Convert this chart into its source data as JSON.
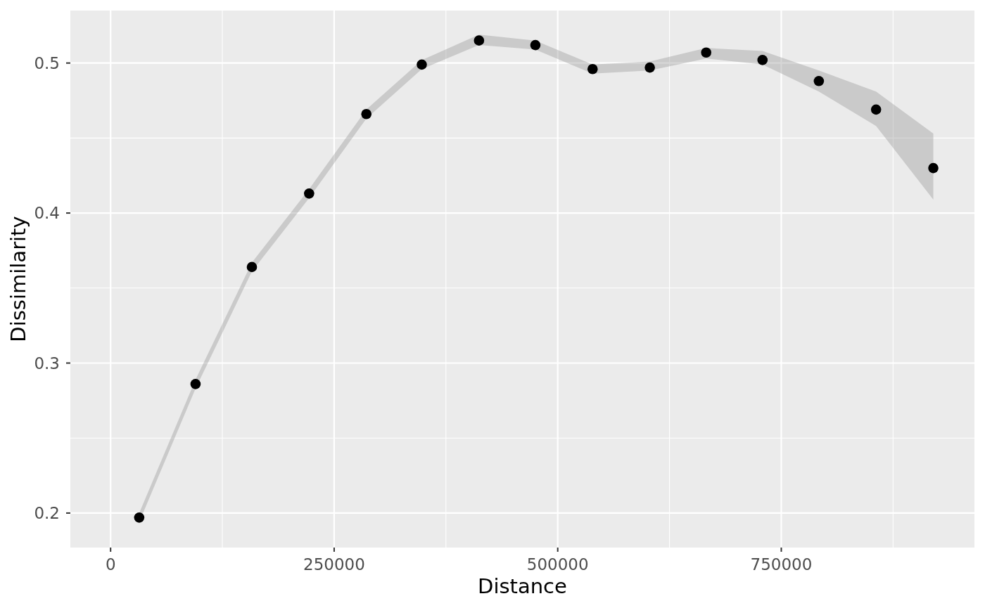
{
  "chart_data": {
    "type": "scatter",
    "xlabel": "Distance",
    "ylabel": "Dissimilarity",
    "x": [
      32000,
      95000,
      158000,
      222000,
      286000,
      348000,
      412000,
      475000,
      539000,
      603000,
      666000,
      729000,
      792000,
      856000,
      920000
    ],
    "series": [
      {
        "color": "#000000",
        "values": [
          0.197,
          0.286,
          0.364,
          0.413,
          0.466,
          0.499,
          0.515,
          0.512,
          0.496,
          0.497,
          0.507,
          0.502,
          0.488,
          0.469,
          0.43
        ],
        "lower": [
          0.194,
          0.283,
          0.361,
          0.41,
          0.463,
          0.496,
          0.512,
          0.509,
          0.493,
          0.495,
          0.503,
          0.499,
          0.481,
          0.458,
          0.409
        ],
        "upper": [
          0.2,
          0.289,
          0.367,
          0.416,
          0.469,
          0.502,
          0.519,
          0.515,
          0.499,
          0.501,
          0.51,
          0.508,
          0.495,
          0.481,
          0.453
        ]
      }
    ],
    "xlim": [
      -45000,
      966000
    ],
    "xticks": [
      0,
      250000,
      500000,
      750000
    ],
    "ylim": [
      0.177,
      0.535
    ],
    "yticks": [
      0.2,
      0.3,
      0.4,
      0.5
    ],
    "grid": true,
    "marker": "circle"
  }
}
